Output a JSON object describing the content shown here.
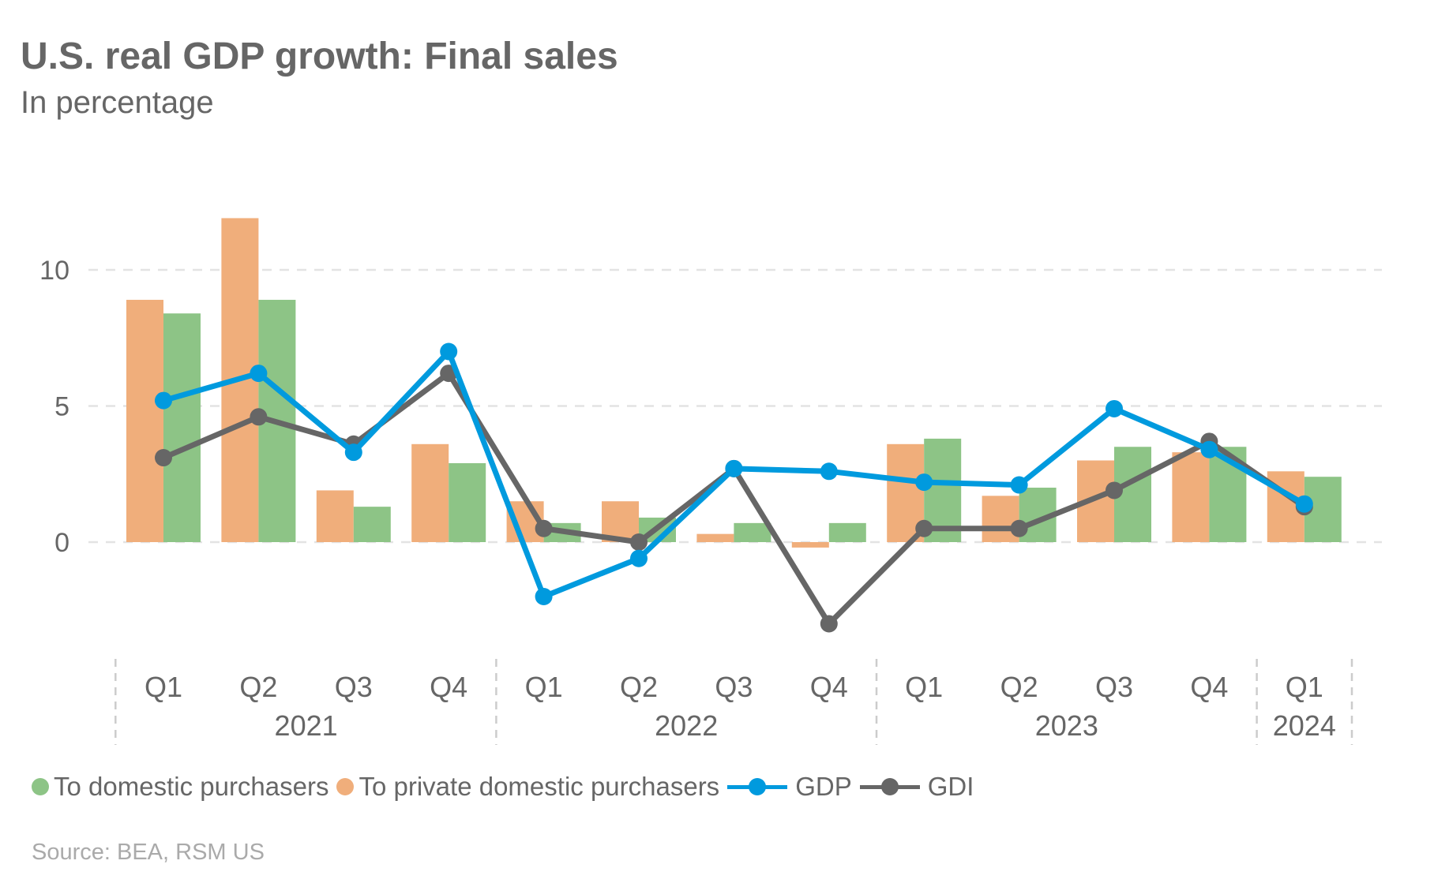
{
  "chart_data": {
    "type": "bar+line",
    "title": "U.S. real GDP growth: Final sales",
    "subtitle": "In percentage",
    "source": "Source: BEA, RSM US",
    "categories": [
      "Q1",
      "Q2",
      "Q3",
      "Q4",
      "Q1",
      "Q2",
      "Q3",
      "Q4",
      "Q1",
      "Q2",
      "Q3",
      "Q4",
      "Q1"
    ],
    "year_groups": [
      {
        "label": "2021",
        "count": 4
      },
      {
        "label": "2022",
        "count": 4
      },
      {
        "label": "2023",
        "count": 4
      },
      {
        "label": "2024",
        "count": 1
      }
    ],
    "yticks": [
      0,
      5,
      10
    ],
    "ylim": [
      -4,
      12.5
    ],
    "grid": true,
    "legend_placement": "bottom",
    "series": [
      {
        "name": "To domestic purchasers",
        "kind": "bar",
        "color": "#8DC486",
        "values": [
          8.4,
          8.9,
          1.3,
          2.9,
          0.7,
          0.9,
          0.7,
          0.7,
          3.8,
          2.0,
          3.5,
          3.5,
          2.4
        ]
      },
      {
        "name": "To private domestic purchasers",
        "kind": "bar",
        "color": "#F0AE7B",
        "values": [
          8.9,
          11.9,
          1.9,
          3.6,
          1.5,
          1.5,
          0.3,
          -0.2,
          3.6,
          1.7,
          3.0,
          3.3,
          2.6
        ]
      },
      {
        "name": "GDP",
        "kind": "line",
        "color": "#009ADE",
        "values": [
          5.2,
          6.2,
          3.3,
          7.0,
          -2.0,
          -0.6,
          2.7,
          2.6,
          2.2,
          2.1,
          4.9,
          3.4,
          1.4
        ]
      },
      {
        "name": "GDI",
        "kind": "line",
        "color": "#666666",
        "values": [
          3.1,
          4.6,
          3.6,
          6.2,
          0.5,
          0.0,
          2.7,
          -3.0,
          0.5,
          0.5,
          1.9,
          3.7,
          1.3
        ]
      }
    ]
  }
}
